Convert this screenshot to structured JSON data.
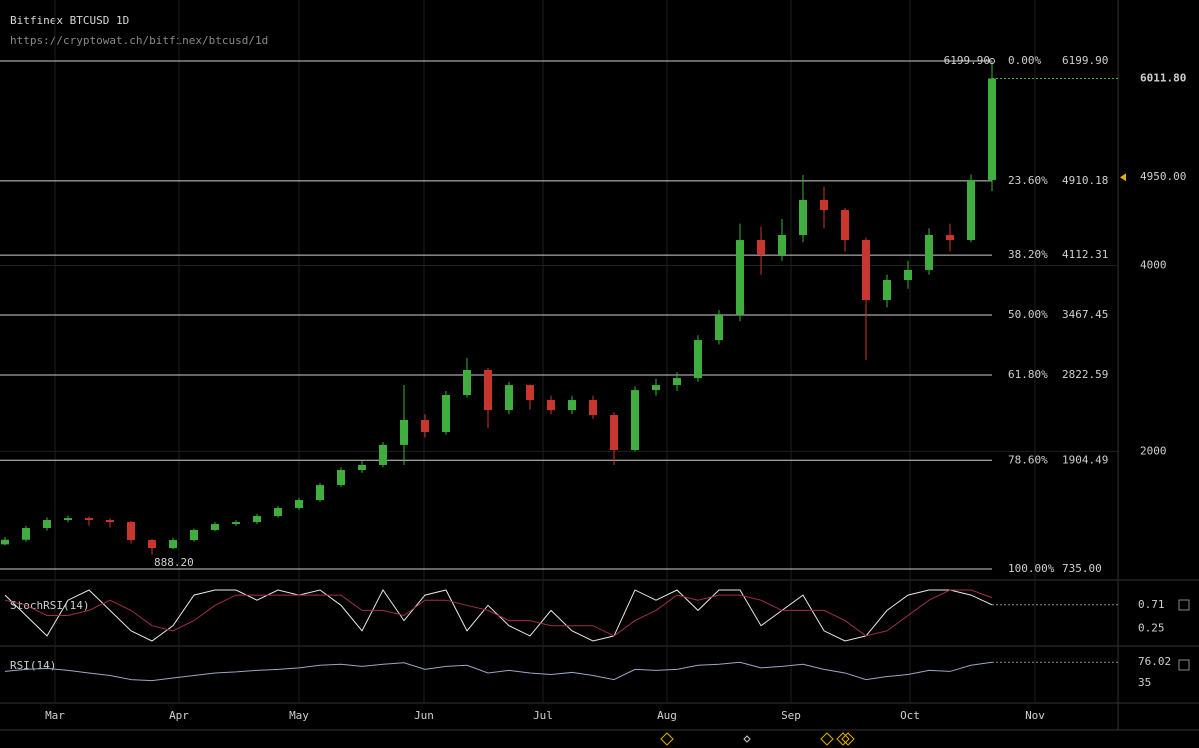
{
  "chart_data": [
    {
      "type": "candlestick",
      "title": "Bitfinex BTCUSD 1D",
      "subtitle": "https://cryptowat.ch/bitfinex/btcusd/1d",
      "up_color": "#3fae3f",
      "down_color": "#c7372f",
      "months": [
        "Mar",
        "Apr",
        "May",
        "Jun",
        "Jul",
        "Aug",
        "Sep",
        "Oct",
        "Nov"
      ],
      "open": [
        1000,
        1050,
        1176,
        1262,
        1283,
        1262,
        1240,
        1047,
        960,
        1047,
        1155,
        1219,
        1240,
        1305,
        1391,
        1477,
        1638,
        1800,
        1854,
        2070,
        2338,
        2209,
        2607,
        2876,
        2445,
        2714,
        2553,
        2445,
        2553,
        2392,
        2015,
        2660,
        2714,
        2789,
        3198,
        3467,
        4274,
        4113,
        4328,
        4705,
        4597,
        4274,
        3629,
        3844,
        3952,
        4328,
        4274,
        4920
      ],
      "high": [
        1080,
        1200,
        1290,
        1310,
        1300,
        1280,
        1250,
        1060,
        1070,
        1170,
        1240,
        1260,
        1330,
        1410,
        1500,
        1660,
        1830,
        1900,
        2100,
        2714,
        2400,
        2650,
        3005,
        2900,
        2750,
        2720,
        2600,
        2600,
        2600,
        2420,
        2700,
        2780,
        2850,
        3250,
        3520,
        4450,
        4420,
        4500,
        4973,
        4850,
        4620,
        4300,
        3900,
        4050,
        4400,
        4450,
        4980,
        6199.9
      ],
      "low": [
        990,
        1030,
        1150,
        1240,
        1200,
        1180,
        1010,
        888.2,
        950,
        1030,
        1140,
        1200,
        1220,
        1290,
        1370,
        1460,
        1620,
        1770,
        1830,
        1854,
        2150,
        2180,
        2580,
        2250,
        2400,
        2450,
        2400,
        2400,
        2350,
        1854,
        2000,
        2600,
        2650,
        2750,
        3150,
        3400,
        3900,
        4050,
        4250,
        4400,
        4150,
        2983,
        3550,
        3750,
        3900,
        4150,
        4250,
        4800
      ],
      "close": [
        1050,
        1176,
        1262,
        1283,
        1262,
        1240,
        1047,
        960,
        1047,
        1155,
        1219,
        1240,
        1305,
        1391,
        1477,
        1638,
        1800,
        1854,
        2070,
        2338,
        2209,
        2607,
        2876,
        2445,
        2714,
        2553,
        2445,
        2553,
        2392,
        2015,
        2660,
        2714,
        2789,
        3198,
        3467,
        4274,
        4113,
        4328,
        4705,
        4597,
        4274,
        3629,
        3844,
        3952,
        4328,
        4274,
        4920,
        6011.8
      ],
      "ylim": [
        617,
        6856
      ],
      "yticks": [
        2000,
        4000
      ],
      "grid": true,
      "high_label": "6199.90",
      "low_label": "888.20",
      "last_label": "6011.80",
      "alert": {
        "value": 4950,
        "label": "4950.00"
      },
      "fib_levels": [
        {
          "ratio": "0.00%",
          "price": {
            "value": 6199.9,
            "label": "6199.90"
          }
        },
        {
          "ratio": "23.60%",
          "price": 4910.18
        },
        {
          "ratio": "38.20%",
          "price": 4112.31
        },
        {
          "ratio": "50.00%",
          "price": 3467.45
        },
        {
          "ratio": "61.80%",
          "price": 2822.59
        },
        {
          "ratio": "78.60%",
          "price": 1904.49
        },
        {
          "ratio": "100.00%",
          "price": {
            "value": 735,
            "label": "735.00"
          }
        }
      ]
    },
    {
      "type": "line",
      "title": "StochRSI(14)",
      "ylim": [
        0,
        1
      ],
      "yticks": [
        0.25
      ],
      "series": [
        {
          "color": "#e8e8e8",
          "values": [
            0.9,
            0.5,
            0.1,
            0.8,
            1,
            0.6,
            0.2,
            0,
            0.3,
            0.9,
            1,
            1,
            0.8,
            1,
            0.9,
            1,
            0.7,
            0.2,
            1,
            0.4,
            0.9,
            1,
            0.2,
            0.7,
            0.3,
            0.1,
            0.6,
            0.2,
            0,
            0.1,
            1,
            0.8,
            1,
            0.6,
            1,
            1,
            0.3,
            0.6,
            0.9,
            0.2,
            0,
            0.1,
            0.6,
            0.9,
            1,
            1,
            0.9,
            0.71
          ]
        },
        {
          "color": "#a0304a",
          "values": [
            0.8,
            0.7,
            0.5,
            0.5,
            0.6,
            0.8,
            0.6,
            0.3,
            0.2,
            0.4,
            0.7,
            0.9,
            0.9,
            0.9,
            0.9,
            0.9,
            0.9,
            0.6,
            0.6,
            0.5,
            0.8,
            0.8,
            0.7,
            0.6,
            0.4,
            0.4,
            0.3,
            0.3,
            0.3,
            0.1,
            0.4,
            0.6,
            0.9,
            0.8,
            0.9,
            0.9,
            0.8,
            0.6,
            0.6,
            0.6,
            0.4,
            0.1,
            0.2,
            0.5,
            0.8,
            1,
            1,
            0.85
          ]
        }
      ]
    },
    {
      "type": "line",
      "title": "RSI(14)",
      "ylim": [
        0,
        100
      ],
      "yticks": [
        35
      ],
      "series": [
        {
          "color": "#9aa6c8",
          "values": [
            58,
            62,
            64,
            60,
            55,
            50,
            42,
            40,
            45,
            50,
            55,
            57,
            60,
            62,
            65,
            70,
            72,
            68,
            72,
            75,
            62,
            68,
            70,
            55,
            60,
            55,
            52,
            56,
            50,
            42,
            62,
            60,
            62,
            70,
            72,
            76,
            65,
            68,
            72,
            62,
            55,
            42,
            48,
            52,
            60,
            58,
            70,
            76.02
          ]
        }
      ]
    }
  ]
}
